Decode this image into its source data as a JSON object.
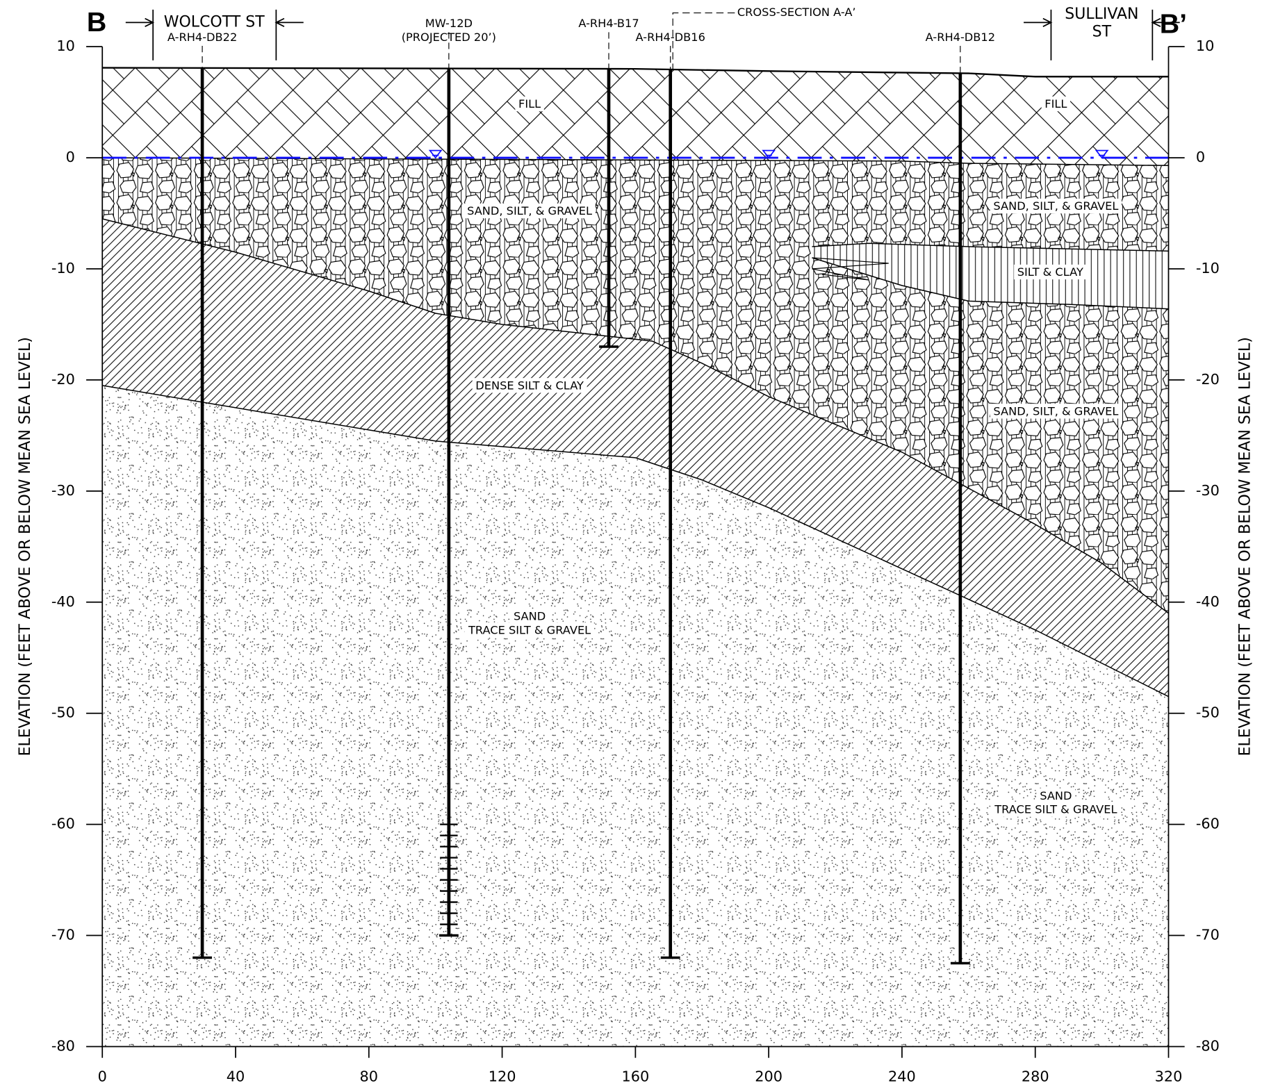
{
  "markers": {
    "left": "B",
    "right": "B’"
  },
  "streets": [
    {
      "lines": [
        "WOLCOTT ST"
      ]
    },
    {
      "lines": [
        "SULLIVAN",
        "ST"
      ]
    }
  ],
  "cross_section_label": "CROSS-SECTION A-A’",
  "axes": {
    "xlim": [
      0,
      320
    ],
    "ylim": [
      -80,
      10
    ],
    "xticks": [
      0,
      40,
      80,
      120,
      160,
      200,
      240,
      280,
      320
    ],
    "yticks": [
      10,
      0,
      -10,
      -20,
      -30,
      -40,
      -50,
      -60,
      -70,
      -80
    ],
    "y_label": "ELEVATION (FEET ABOVE OR BELOW MEAN SEA LEVEL)"
  },
  "water_table": 0,
  "boreholes": [
    {
      "name": "A-RH4-DB22",
      "x": 30,
      "bottom": -72
    },
    {
      "name": "MW-12D",
      "note": "(PROJECTED 20’)",
      "x": 104,
      "bottom": -70,
      "screen_top": -60
    },
    {
      "name": "A-RH4-B17",
      "x": 152,
      "bottom": -17
    },
    {
      "name": "A-RH4-DB16",
      "x": 170.5,
      "bottom": -72
    },
    {
      "name": "A-RH4-DB12",
      "x": 257.5,
      "bottom": -72.5
    }
  ],
  "boundaries": {
    "ground": {
      "x": [
        0,
        160,
        200,
        260,
        280,
        320
      ],
      "y": [
        8.1,
        8.0,
        7.8,
        7.6,
        7.3,
        7.3
      ]
    },
    "fill_base": {
      "x": [
        0,
        240,
        260,
        320
      ],
      "y": [
        0,
        -0.3,
        -0.5,
        -0.7
      ]
    },
    "dense_top": {
      "x": [
        0,
        40,
        80,
        100,
        120,
        150,
        165,
        180,
        200,
        240,
        280,
        300,
        320
      ],
      "y": [
        -5.5,
        -8.5,
        -12,
        -14,
        -15,
        -16,
        -16.5,
        -18.5,
        -21.5,
        -26.5,
        -33,
        -36.5,
        -41
      ]
    },
    "sand_top": {
      "x": [
        0,
        40,
        80,
        100,
        160,
        180,
        200,
        240,
        280,
        320
      ],
      "y": [
        -20.5,
        -22.5,
        -24.5,
        -25.5,
        -27,
        -29,
        -31.5,
        -37,
        -42.5,
        -48.5
      ]
    },
    "lens_top": {
      "x": [
        213,
        230,
        260,
        290,
        320
      ],
      "y": [
        -8,
        -7.7,
        -8,
        -8.2,
        -8.4
      ]
    },
    "lens_base": {
      "x": [
        213,
        240,
        260,
        290,
        320
      ],
      "y": [
        -9,
        -11.5,
        -12.9,
        -13.2,
        -13.6
      ]
    }
  },
  "layer_labels": [
    [
      "FILL"
    ],
    [
      "FILL"
    ],
    [
      "SAND, SILT, & GRAVEL"
    ],
    [
      "SAND, SILT, & GRAVEL"
    ],
    [
      "SILT & CLAY"
    ],
    [
      "SAND, SILT, & GRAVEL"
    ],
    [
      "DENSE SILT & CLAY"
    ],
    [
      "SAND",
      "TRACE SILT & GRAVEL"
    ],
    [
      "SAND",
      "TRACE SILT & GRAVEL"
    ]
  ]
}
